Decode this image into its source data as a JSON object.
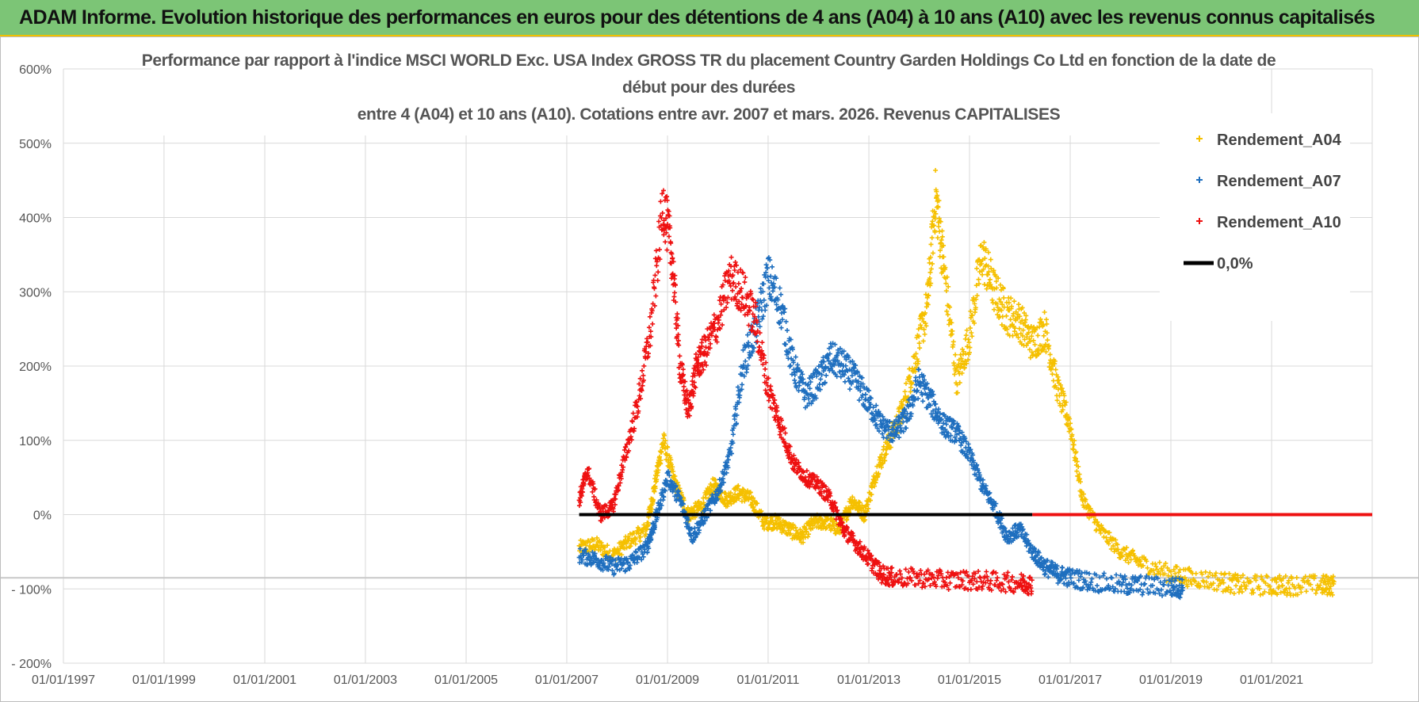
{
  "banner": {
    "title": "ADAM Informe. Evolution historique des performances en euros pour des détentions de 4 ans (A04) à 10 ans (A10) avec les revenus connus capitalisés"
  },
  "chart_data": {
    "type": "scatter",
    "title_lines": [
      "Performance par rapport à l'indice MSCI WORLD Exc. USA Index GROSS TR  du placement Country Garden Holdings Co Ltd en fonction de la date de",
      "début pour des durées",
      "entre 4 (A04) et 10 ans (A10).  Cotations entre avr. 2007 et mars. 2026.  Revenus CAPITALISES"
    ],
    "x_ticks": [
      "01/01/1997",
      "01/01/1999",
      "01/01/2001",
      "01/01/2003",
      "01/01/2005",
      "01/01/2007",
      "01/01/2009",
      "01/01/2011",
      "01/01/2013",
      "01/01/2015",
      "01/01/2017",
      "01/01/2019",
      "01/01/2021"
    ],
    "y_ticks": [
      "600%",
      "500%",
      "400%",
      "300%",
      "200%",
      "100%",
      "0%",
      "- 100%",
      "- 200%"
    ],
    "xlim": [
      "1997-01-01",
      "2023-01-01"
    ],
    "ylim": [
      -200,
      600
    ],
    "grid": true,
    "legend_position": "top-right",
    "series": [
      {
        "name": "Rendement_A04",
        "color": "#f5c000",
        "marker": "+",
        "points": [
          [
            "2007-04",
            -45
          ],
          [
            "2007-08",
            -40
          ],
          [
            "2007-12",
            -55
          ],
          [
            "2008-04",
            -35
          ],
          [
            "2008-08",
            -20
          ],
          [
            "2008-10",
            40
          ],
          [
            "2008-12",
            100
          ],
          [
            "2009-03",
            40
          ],
          [
            "2009-06",
            0
          ],
          [
            "2009-09",
            10
          ],
          [
            "2009-12",
            40
          ],
          [
            "2010-03",
            20
          ],
          [
            "2010-06",
            30
          ],
          [
            "2010-09",
            20
          ],
          [
            "2010-12",
            -10
          ],
          [
            "2011-03",
            -10
          ],
          [
            "2011-06",
            -20
          ],
          [
            "2011-09",
            -30
          ],
          [
            "2011-12",
            -10
          ],
          [
            "2012-03",
            -10
          ],
          [
            "2012-06",
            -20
          ],
          [
            "2012-09",
            20
          ],
          [
            "2012-12",
            0
          ],
          [
            "2013-03",
            60
          ],
          [
            "2013-06",
            100
          ],
          [
            "2013-09",
            140
          ],
          [
            "2013-12",
            210
          ],
          [
            "2014-03",
            280
          ],
          [
            "2014-05",
            430
          ],
          [
            "2014-07",
            330
          ],
          [
            "2014-10",
            180
          ],
          [
            "2015-01",
            240
          ],
          [
            "2015-04",
            350
          ],
          [
            "2015-07",
            300
          ],
          [
            "2015-10",
            270
          ],
          [
            "2016-01",
            260
          ],
          [
            "2016-04",
            230
          ],
          [
            "2016-07",
            250
          ],
          [
            "2016-10",
            170
          ],
          [
            "2017-01",
            120
          ],
          [
            "2017-04",
            20
          ],
          [
            "2017-08",
            -20
          ],
          [
            "2018-01",
            -50
          ],
          [
            "2018-06",
            -65
          ],
          [
            "2019-01",
            -80
          ],
          [
            "2019-06",
            -85
          ],
          [
            "2020-01",
            -90
          ],
          [
            "2020-06",
            -95
          ],
          [
            "2021-01",
            -95
          ],
          [
            "2021-06",
            -95
          ],
          [
            "2022-01",
            -95
          ],
          [
            "2022-04",
            -95
          ]
        ]
      },
      {
        "name": "Rendement_A07",
        "color": "#1f6fbf",
        "marker": "+",
        "points": [
          [
            "2007-04",
            -55
          ],
          [
            "2007-08",
            -60
          ],
          [
            "2007-12",
            -70
          ],
          [
            "2008-04",
            -65
          ],
          [
            "2008-08",
            -45
          ],
          [
            "2008-10",
            -10
          ],
          [
            "2009-01",
            50
          ],
          [
            "2009-04",
            20
          ],
          [
            "2009-07",
            -30
          ],
          [
            "2009-10",
            0
          ],
          [
            "2010-01",
            30
          ],
          [
            "2010-04",
            80
          ],
          [
            "2010-07",
            200
          ],
          [
            "2010-10",
            250
          ],
          [
            "2011-01",
            320
          ],
          [
            "2011-04",
            280
          ],
          [
            "2011-07",
            200
          ],
          [
            "2011-10",
            160
          ],
          [
            "2012-01",
            180
          ],
          [
            "2012-04",
            210
          ],
          [
            "2012-07",
            200
          ],
          [
            "2012-10",
            180
          ],
          [
            "2013-01",
            150
          ],
          [
            "2013-04",
            120
          ],
          [
            "2013-07",
            110
          ],
          [
            "2013-10",
            130
          ],
          [
            "2014-01",
            180
          ],
          [
            "2014-04",
            150
          ],
          [
            "2014-07",
            120
          ],
          [
            "2014-10",
            110
          ],
          [
            "2015-01",
            80
          ],
          [
            "2015-04",
            40
          ],
          [
            "2015-07",
            10
          ],
          [
            "2015-10",
            -30
          ],
          [
            "2016-01",
            -20
          ],
          [
            "2016-04",
            -50
          ],
          [
            "2016-07",
            -70
          ],
          [
            "2016-10",
            -80
          ],
          [
            "2017-01",
            -85
          ],
          [
            "2017-06",
            -90
          ],
          [
            "2018-01",
            -95
          ],
          [
            "2018-06",
            -95
          ],
          [
            "2019-01",
            -98
          ],
          [
            "2019-04",
            -98
          ]
        ]
      },
      {
        "name": "Rendement_A10",
        "color": "#ee1111",
        "marker": "+",
        "points": [
          [
            "2007-04",
            20
          ],
          [
            "2007-06",
            60
          ],
          [
            "2007-09",
            0
          ],
          [
            "2007-12",
            10
          ],
          [
            "2008-03",
            80
          ],
          [
            "2008-06",
            150
          ],
          [
            "2008-09",
            250
          ],
          [
            "2008-12",
            420
          ],
          [
            "2009-02",
            350
          ],
          [
            "2009-04",
            200
          ],
          [
            "2009-06",
            140
          ],
          [
            "2009-08",
            200
          ],
          [
            "2009-10",
            220
          ],
          [
            "2010-01",
            260
          ],
          [
            "2010-04",
            320
          ],
          [
            "2010-07",
            300
          ],
          [
            "2010-10",
            260
          ],
          [
            "2011-01",
            170
          ],
          [
            "2011-04",
            120
          ],
          [
            "2011-07",
            70
          ],
          [
            "2011-10",
            50
          ],
          [
            "2012-01",
            40
          ],
          [
            "2012-04",
            20
          ],
          [
            "2012-07",
            -20
          ],
          [
            "2012-10",
            -40
          ],
          [
            "2013-01",
            -60
          ],
          [
            "2013-04",
            -80
          ],
          [
            "2013-07",
            -85
          ],
          [
            "2014-01",
            -85
          ],
          [
            "2014-07",
            -88
          ],
          [
            "2015-01",
            -88
          ],
          [
            "2015-07",
            -90
          ],
          [
            "2016-01",
            -92
          ],
          [
            "2016-04",
            -94
          ]
        ]
      },
      {
        "name": "0,0%",
        "color": "#000000",
        "marker": "line",
        "segments": [
          {
            "from": "2007-04-01",
            "to": "2016-04-01",
            "y": 0,
            "color": "#000000"
          },
          {
            "from": "2016-04-01",
            "to": "2023-01-01",
            "y": 0,
            "color": "#ee1111"
          }
        ]
      }
    ]
  }
}
